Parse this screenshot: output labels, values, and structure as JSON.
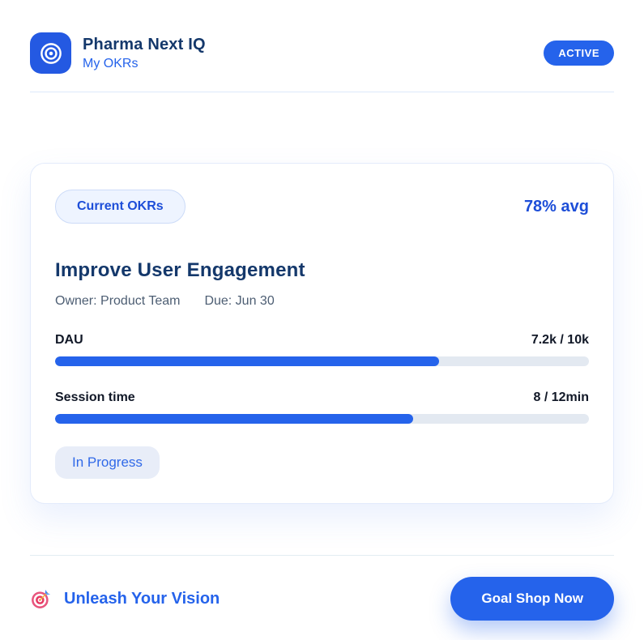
{
  "header": {
    "app_title": "Pharma Next IQ",
    "subtitle": "My OKRs",
    "status_badge": "ACTIVE"
  },
  "card": {
    "tag_label": "Current OKRs",
    "avg_label": "78% avg",
    "objective_title": "Improve User Engagement",
    "owner": "Owner: Product Team",
    "due": "Due: Jun 30",
    "key_results": [
      {
        "label": "DAU",
        "value": "7.2k / 10k",
        "progress_pct": 72
      },
      {
        "label": "Session time",
        "value": "8 / 12min",
        "progress_pct": 67
      }
    ],
    "status_label": "In Progress"
  },
  "footer": {
    "tagline": "Unleash Your Vision",
    "cta_label": "Goal Shop Now"
  },
  "icons": {
    "logo": "bullseye-icon",
    "footer": "dart-target-icon"
  },
  "colors": {
    "primary_blue": "#2563eb",
    "deep_navy_heading": "#14386b",
    "link_blue": "#1d4ed8",
    "muted_text": "#4d5e73",
    "pill_bg": "#eef4ff",
    "status_pill_bg": "#e8edf8",
    "progress_track": "#e3e9f1",
    "divider": "#dde9fb"
  }
}
